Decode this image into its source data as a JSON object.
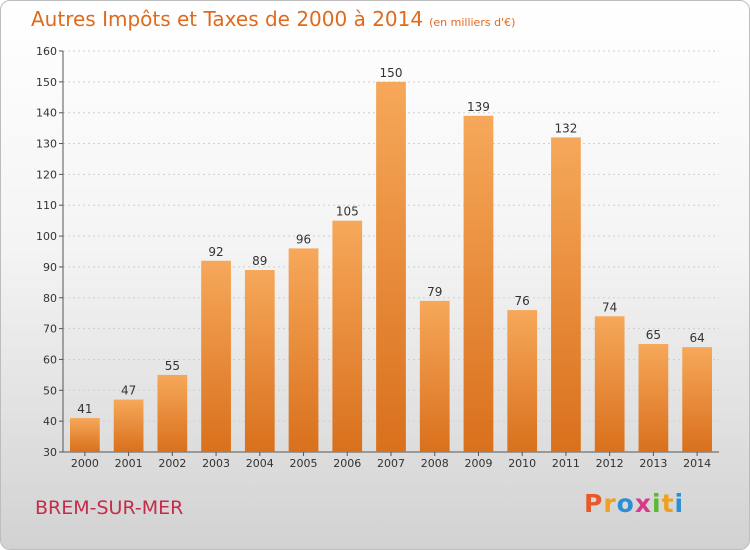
{
  "title": "Autres Impôts et Taxes de 2000 à 2014",
  "unit": "(en milliers d'€)",
  "city": "BREM-SUR-MER",
  "logo": {
    "letters": [
      "P",
      "r",
      "o",
      "x",
      "i",
      "t",
      "i"
    ],
    "colors": [
      "#e8592a",
      "#f0a020",
      "#2a8fd6",
      "#d83a8a",
      "#5cb832",
      "#f0a020",
      "#2a8fd6"
    ]
  },
  "colors": {
    "bar_light": "#f6a85a",
    "bar_dark": "#d9701c",
    "title": "#e06a1c",
    "city": "#c32c4a",
    "grid": "#d0d0d0"
  },
  "chart_data": {
    "type": "bar",
    "title": "Autres Impôts et Taxes de 2000 à 2014",
    "ylabel": "",
    "xlabel": "",
    "ylim": [
      30,
      160
    ],
    "ytick_step": 10,
    "grid": true,
    "categories": [
      "2000",
      "2001",
      "2002",
      "2003",
      "2004",
      "2005",
      "2006",
      "2007",
      "2008",
      "2009",
      "2010",
      "2011",
      "2012",
      "2013",
      "2014"
    ],
    "values": [
      41,
      47,
      55,
      92,
      89,
      96,
      105,
      150,
      79,
      139,
      76,
      132,
      74,
      65,
      64
    ]
  }
}
